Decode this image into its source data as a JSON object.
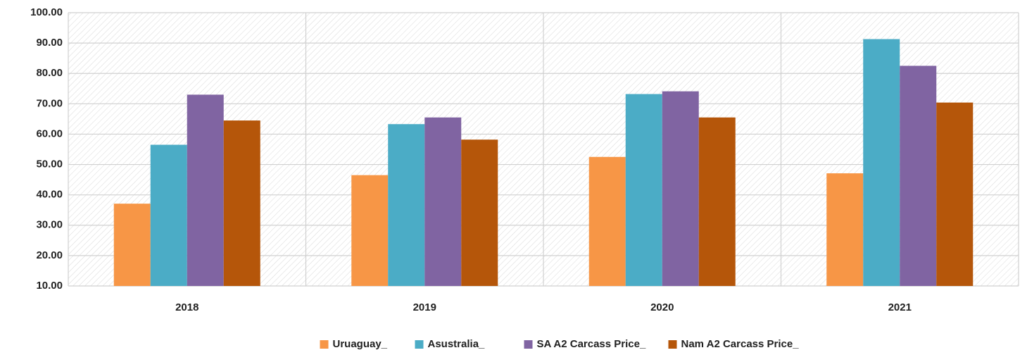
{
  "chart_data": {
    "type": "bar",
    "categories": [
      "2018",
      "2019",
      "2020",
      "2021"
    ],
    "series": [
      {
        "name": "Uruaguay_",
        "color": "#f79646",
        "values": [
          37.1,
          46.5,
          52.5,
          47.1
        ]
      },
      {
        "name": "Asustralia_",
        "color": "#4bacc6",
        "values": [
          56.5,
          63.3,
          73.2,
          91.3
        ]
      },
      {
        "name": "SA A2 Carcass Price_",
        "color": "#8064a2",
        "values": [
          73.0,
          65.5,
          74.1,
          82.5
        ]
      },
      {
        "name": "Nam A2 Carcass Price_",
        "color": "#b5560a",
        "values": [
          64.5,
          58.2,
          65.5,
          70.4
        ]
      }
    ],
    "ylim": [
      10,
      100
    ],
    "yticks": [
      {
        "value": 10,
        "label": "10.00"
      },
      {
        "value": 20,
        "label": "20.00"
      },
      {
        "value": 30,
        "label": "30.00"
      },
      {
        "value": 40,
        "label": "40.00"
      },
      {
        "value": 50,
        "label": "50.00"
      },
      {
        "value": 60,
        "label": "60.00"
      },
      {
        "value": 70,
        "label": "70.00"
      },
      {
        "value": 80,
        "label": "80.00"
      },
      {
        "value": 90,
        "label": "90.00"
      },
      {
        "value": 100,
        "label": "100.00"
      }
    ],
    "grid": true,
    "legend": "bottom"
  }
}
